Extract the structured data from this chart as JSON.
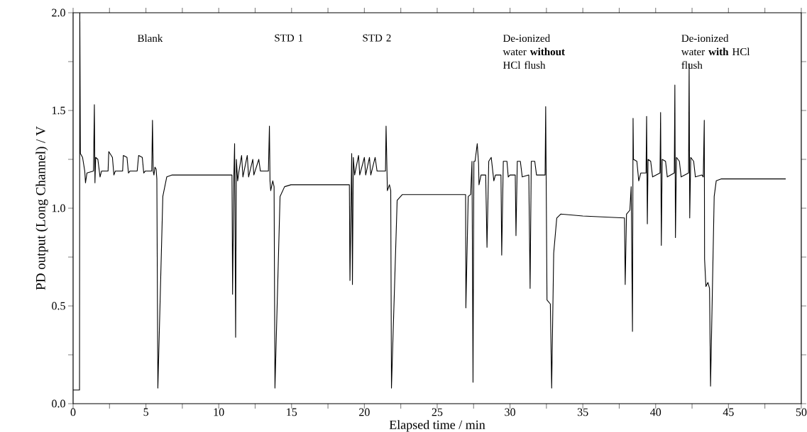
{
  "chart_data": {
    "type": "line",
    "xlabel": "Elapsed time / min",
    "ylabel": "PD output (Long Channel) / V",
    "xlim": [
      0,
      50
    ],
    "ylim": [
      0,
      2
    ],
    "xticks": [
      0,
      {
        "value": 2.5,
        "label": null
      },
      5,
      {
        "value": 7.5,
        "label": null
      },
      10,
      {
        "value": 12.5,
        "label": null
      },
      15,
      {
        "value": 17.5,
        "label": null
      },
      20,
      {
        "value": 22.5,
        "label": null
      },
      25,
      {
        "value": 27.5,
        "label": null
      },
      30,
      {
        "value": 32.5,
        "label": null
      },
      35,
      {
        "value": 37.5,
        "label": null
      },
      40,
      {
        "value": 42.5,
        "label": null
      },
      45,
      {
        "value": 47.5,
        "label": null
      },
      50
    ],
    "yticks": [
      {
        "value": 0,
        "label": "0.0"
      },
      {
        "value": 0.25,
        "label": null
      },
      {
        "value": 0.5,
        "label": "0.5"
      },
      {
        "value": 0.75,
        "label": null
      },
      {
        "value": 1,
        "label": "1.0"
      },
      {
        "value": 1.25,
        "label": null
      },
      {
        "value": 1.5,
        "label": "1.5"
      },
      {
        "value": 1.75,
        "label": null
      },
      {
        "value": 2,
        "label": "2.0"
      }
    ],
    "marker": "none",
    "line_style": "solid",
    "annotations": [
      "Blank",
      "STD 1",
      "STD 2",
      "De-ionized water **without** HCl flush",
      "De-ionized water **with** HCl flush"
    ],
    "series": [
      {
        "color": "#000000",
        "x": [
          0,
          0.44,
          0.46,
          0.5,
          0.65,
          0.8,
          0.85,
          0.95,
          1.4,
          1.46,
          1.5,
          1.55,
          1.7,
          1.85,
          1.95,
          2.4,
          2.45,
          2.7,
          2.8,
          2.9,
          3.4,
          3.45,
          3.7,
          3.8,
          3.9,
          4.4,
          4.5,
          4.75,
          4.85,
          4.95,
          5.4,
          5.45,
          5.5,
          5.55,
          5.62,
          5.7,
          5.75,
          5.82,
          6.0,
          6.16,
          6.43,
          6.8,
          7.5,
          10.91,
          10.95,
          11.04,
          11.09,
          11.16,
          11.21,
          11.3,
          11.39,
          11.57,
          11.66,
          11.96,
          12.05,
          12.34,
          12.41,
          12.75,
          12.86,
          13.41,
          13.48,
          13.52,
          13.57,
          13.71,
          13.8,
          13.86,
          14.21,
          14.52,
          14.96,
          18.97,
          19.01,
          19.13,
          19.18,
          19.24,
          19.33,
          19.6,
          19.68,
          20.0,
          20.09,
          20.35,
          20.44,
          20.74,
          20.87,
          21.45,
          21.49,
          21.58,
          21.72,
          21.81,
          21.86,
          22.25,
          22.61,
          26.95,
          26.97,
          27.13,
          27.3,
          27.39,
          27.46,
          27.52,
          27.6,
          27.75,
          27.84,
          27.87,
          28.01,
          28.33,
          28.42,
          28.54,
          28.71,
          28.89,
          29.0,
          29.38,
          29.43,
          29.54,
          29.79,
          29.88,
          30.0,
          30.36,
          30.41,
          30.5,
          30.71,
          30.84,
          31.29,
          31.38,
          31.46,
          31.7,
          31.82,
          32.41,
          32.45,
          32.54,
          32.77,
          32.86,
          33.0,
          33.21,
          33.48,
          35.0,
          37.86,
          37.91,
          38.0,
          38.23,
          38.32,
          38.41,
          38.45,
          38.48,
          38.71,
          38.84,
          38.98,
          39.34,
          39.38,
          39.43,
          39.48,
          39.66,
          39.79,
          40.3,
          40.34,
          40.39,
          40.45,
          40.68,
          40.8,
          41.28,
          41.32,
          41.36,
          41.43,
          41.63,
          41.75,
          42.26,
          42.3,
          42.34,
          42.41,
          42.61,
          42.73,
          43.18,
          43.27,
          43.34,
          43.36,
          43.45,
          43.59,
          43.7,
          43.77,
          44.02,
          44.16,
          44.52,
          48.93
        ],
        "values": [
          0.07,
          0.07,
          2.0,
          1.28,
          1.26,
          1.19,
          1.13,
          1.18,
          1.19,
          1.53,
          1.13,
          1.26,
          1.25,
          1.16,
          1.19,
          1.19,
          1.29,
          1.26,
          1.17,
          1.19,
          1.19,
          1.27,
          1.26,
          1.18,
          1.19,
          1.19,
          1.27,
          1.26,
          1.18,
          1.19,
          1.19,
          1.45,
          1.19,
          1.17,
          1.21,
          1.2,
          1.15,
          0.08,
          0.6,
          1.06,
          1.16,
          1.17,
          1.17,
          1.17,
          0.56,
          1.17,
          1.33,
          0.34,
          1.25,
          1.14,
          1.19,
          1.27,
          1.16,
          1.27,
          1.16,
          1.25,
          1.17,
          1.25,
          1.19,
          1.19,
          1.42,
          1.14,
          1.09,
          1.14,
          1.11,
          0.08,
          1.06,
          1.11,
          1.12,
          1.12,
          0.63,
          1.28,
          0.61,
          1.26,
          1.17,
          1.27,
          1.17,
          1.26,
          1.17,
          1.26,
          1.17,
          1.26,
          1.19,
          1.19,
          1.42,
          1.09,
          1.12,
          1.09,
          0.08,
          1.04,
          1.07,
          1.07,
          0.49,
          1.06,
          1.07,
          1.24,
          0.11,
          1.24,
          1.24,
          1.33,
          1.23,
          1.12,
          1.17,
          1.17,
          0.8,
          1.24,
          1.26,
          1.14,
          1.17,
          1.17,
          0.76,
          1.24,
          1.24,
          1.16,
          1.17,
          1.17,
          0.86,
          1.24,
          1.24,
          1.16,
          1.17,
          0.59,
          1.24,
          1.24,
          1.17,
          1.17,
          1.52,
          0.53,
          0.51,
          0.08,
          0.77,
          0.95,
          0.97,
          0.96,
          0.95,
          0.61,
          0.97,
          0.99,
          1.11,
          0.37,
          1.46,
          1.25,
          1.24,
          1.14,
          1.18,
          1.18,
          1.47,
          0.92,
          1.25,
          1.24,
          1.16,
          1.18,
          1.49,
          0.81,
          1.25,
          1.24,
          1.16,
          1.18,
          1.63,
          0.85,
          1.26,
          1.24,
          1.16,
          1.18,
          1.74,
          0.95,
          1.26,
          1.24,
          1.16,
          1.17,
          1.16,
          1.45,
          0.74,
          0.6,
          0.62,
          0.59,
          0.09,
          1.06,
          1.14,
          1.15,
          1.15
        ]
      }
    ]
  }
}
